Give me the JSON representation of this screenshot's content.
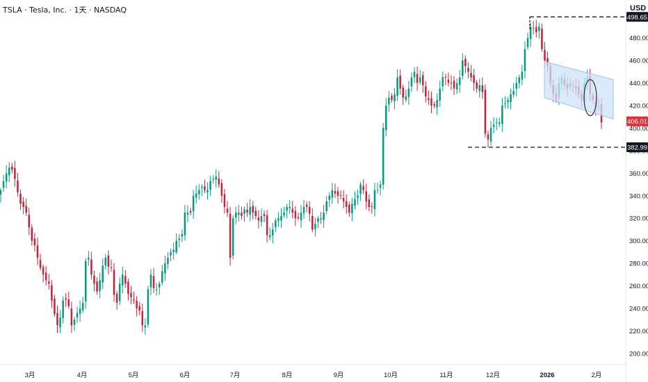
{
  "header": {
    "title": "TSLA · Tesla, Inc. · 1天 · NASDAQ"
  },
  "currency": "USD",
  "colors": {
    "up": "#089981",
    "down": "#c2253a",
    "last_price_bg": "#e2303b",
    "channel_fill": "#cfe3f9"
  },
  "chart_data": {
    "type": "candlestick",
    "y_ticks": [
      "200.00",
      "220.00",
      "240.00",
      "260.00",
      "280.00",
      "300.00",
      "320.00",
      "340.00",
      "360.00",
      "380.00",
      "400.00",
      "420.00",
      "440.00",
      "460.00",
      "480.00",
      "500.00"
    ],
    "x_ticks": [
      "3月",
      "4月",
      "5月",
      "6月",
      "7月",
      "8月",
      "9月",
      "10月",
      "11月",
      "12月",
      "2026",
      "2月"
    ],
    "ylim": [
      195,
      505
    ],
    "closes": [
      345,
      353,
      360,
      365,
      363,
      355,
      343,
      333,
      330,
      325,
      312,
      300,
      296,
      285,
      276,
      270,
      265,
      262,
      247,
      235,
      225,
      232,
      247,
      248,
      242,
      225,
      230,
      236,
      240,
      245,
      282,
      285,
      270,
      262,
      255,
      265,
      278,
      285,
      277,
      276,
      252,
      245,
      262,
      270,
      262,
      253,
      250,
      247,
      240,
      238,
      225,
      225,
      257,
      270,
      258,
      257,
      262,
      273,
      280,
      285,
      290,
      292,
      300,
      302,
      306,
      325,
      325,
      325,
      340,
      342,
      345,
      348,
      345,
      345,
      353,
      355,
      357,
      350,
      340,
      330,
      325,
      285,
      320,
      325,
      325,
      322,
      328,
      325,
      330,
      325,
      322,
      318,
      322,
      322,
      305,
      305,
      310,
      318,
      320,
      322,
      325,
      330,
      330,
      325,
      320,
      320,
      325,
      330,
      330,
      324,
      310,
      315,
      320,
      320,
      325,
      335,
      340,
      345,
      342,
      340,
      340,
      335,
      330,
      325,
      333,
      337,
      340,
      350,
      345,
      335,
      330,
      330,
      345,
      345,
      350,
      400,
      420,
      427,
      425,
      430,
      445,
      435,
      427,
      428,
      435,
      445,
      450,
      440,
      445,
      438,
      428,
      425,
      420,
      420,
      425,
      435,
      445,
      445,
      440,
      440,
      435,
      440,
      445,
      460,
      455,
      450,
      445,
      440,
      435,
      438,
      432,
      395,
      390,
      400,
      403,
      405,
      405,
      420,
      422,
      425,
      430,
      433,
      440,
      445,
      450,
      470,
      480,
      490,
      488,
      485,
      490,
      470,
      460,
      455,
      440,
      430,
      425,
      440,
      445,
      438,
      435,
      440,
      438,
      435,
      430,
      425,
      440,
      445,
      430,
      425,
      418,
      420,
      405
    ],
    "annotations": {
      "channel": {
        "upper_start": 459,
        "upper_end": 443,
        "lower_start": 427,
        "lower_end": 408
      },
      "high_line": {
        "value": 498.65,
        "label": "498.65"
      },
      "low_line": {
        "value": 382.99,
        "label": "382.99"
      },
      "last_price": {
        "value": 406.01,
        "label": "406.01"
      }
    }
  }
}
